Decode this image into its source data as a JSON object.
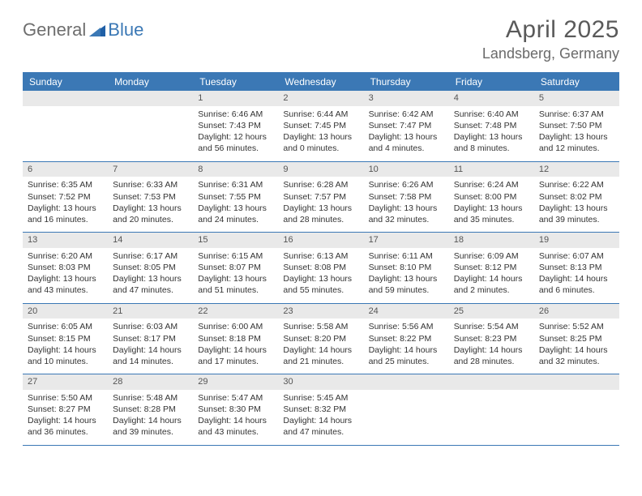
{
  "brand": {
    "part1": "General",
    "part2": "Blue"
  },
  "title": "April 2025",
  "subtitle": "Landsberg, Germany",
  "colors": {
    "accent": "#3b78b5",
    "logo_gray": "#6e6e6e",
    "title_gray": "#5a5a5a",
    "subtitle_gray": "#6a6a6a",
    "daynum_bg": "#e9e9e9",
    "daynum_text": "#555555",
    "body_text": "#333333",
    "background": "#ffffff"
  },
  "day_headers": [
    "Sunday",
    "Monday",
    "Tuesday",
    "Wednesday",
    "Thursday",
    "Friday",
    "Saturday"
  ],
  "weeks": [
    [
      {
        "day": "",
        "sunrise": "",
        "sunset": "",
        "daylight1": "",
        "daylight2": ""
      },
      {
        "day": "",
        "sunrise": "",
        "sunset": "",
        "daylight1": "",
        "daylight2": ""
      },
      {
        "day": "1",
        "sunrise": "Sunrise: 6:46 AM",
        "sunset": "Sunset: 7:43 PM",
        "daylight1": "Daylight: 12 hours",
        "daylight2": "and 56 minutes."
      },
      {
        "day": "2",
        "sunrise": "Sunrise: 6:44 AM",
        "sunset": "Sunset: 7:45 PM",
        "daylight1": "Daylight: 13 hours",
        "daylight2": "and 0 minutes."
      },
      {
        "day": "3",
        "sunrise": "Sunrise: 6:42 AM",
        "sunset": "Sunset: 7:47 PM",
        "daylight1": "Daylight: 13 hours",
        "daylight2": "and 4 minutes."
      },
      {
        "day": "4",
        "sunrise": "Sunrise: 6:40 AM",
        "sunset": "Sunset: 7:48 PM",
        "daylight1": "Daylight: 13 hours",
        "daylight2": "and 8 minutes."
      },
      {
        "day": "5",
        "sunrise": "Sunrise: 6:37 AM",
        "sunset": "Sunset: 7:50 PM",
        "daylight1": "Daylight: 13 hours",
        "daylight2": "and 12 minutes."
      }
    ],
    [
      {
        "day": "6",
        "sunrise": "Sunrise: 6:35 AM",
        "sunset": "Sunset: 7:52 PM",
        "daylight1": "Daylight: 13 hours",
        "daylight2": "and 16 minutes."
      },
      {
        "day": "7",
        "sunrise": "Sunrise: 6:33 AM",
        "sunset": "Sunset: 7:53 PM",
        "daylight1": "Daylight: 13 hours",
        "daylight2": "and 20 minutes."
      },
      {
        "day": "8",
        "sunrise": "Sunrise: 6:31 AM",
        "sunset": "Sunset: 7:55 PM",
        "daylight1": "Daylight: 13 hours",
        "daylight2": "and 24 minutes."
      },
      {
        "day": "9",
        "sunrise": "Sunrise: 6:28 AM",
        "sunset": "Sunset: 7:57 PM",
        "daylight1": "Daylight: 13 hours",
        "daylight2": "and 28 minutes."
      },
      {
        "day": "10",
        "sunrise": "Sunrise: 6:26 AM",
        "sunset": "Sunset: 7:58 PM",
        "daylight1": "Daylight: 13 hours",
        "daylight2": "and 32 minutes."
      },
      {
        "day": "11",
        "sunrise": "Sunrise: 6:24 AM",
        "sunset": "Sunset: 8:00 PM",
        "daylight1": "Daylight: 13 hours",
        "daylight2": "and 35 minutes."
      },
      {
        "day": "12",
        "sunrise": "Sunrise: 6:22 AM",
        "sunset": "Sunset: 8:02 PM",
        "daylight1": "Daylight: 13 hours",
        "daylight2": "and 39 minutes."
      }
    ],
    [
      {
        "day": "13",
        "sunrise": "Sunrise: 6:20 AM",
        "sunset": "Sunset: 8:03 PM",
        "daylight1": "Daylight: 13 hours",
        "daylight2": "and 43 minutes."
      },
      {
        "day": "14",
        "sunrise": "Sunrise: 6:17 AM",
        "sunset": "Sunset: 8:05 PM",
        "daylight1": "Daylight: 13 hours",
        "daylight2": "and 47 minutes."
      },
      {
        "day": "15",
        "sunrise": "Sunrise: 6:15 AM",
        "sunset": "Sunset: 8:07 PM",
        "daylight1": "Daylight: 13 hours",
        "daylight2": "and 51 minutes."
      },
      {
        "day": "16",
        "sunrise": "Sunrise: 6:13 AM",
        "sunset": "Sunset: 8:08 PM",
        "daylight1": "Daylight: 13 hours",
        "daylight2": "and 55 minutes."
      },
      {
        "day": "17",
        "sunrise": "Sunrise: 6:11 AM",
        "sunset": "Sunset: 8:10 PM",
        "daylight1": "Daylight: 13 hours",
        "daylight2": "and 59 minutes."
      },
      {
        "day": "18",
        "sunrise": "Sunrise: 6:09 AM",
        "sunset": "Sunset: 8:12 PM",
        "daylight1": "Daylight: 14 hours",
        "daylight2": "and 2 minutes."
      },
      {
        "day": "19",
        "sunrise": "Sunrise: 6:07 AM",
        "sunset": "Sunset: 8:13 PM",
        "daylight1": "Daylight: 14 hours",
        "daylight2": "and 6 minutes."
      }
    ],
    [
      {
        "day": "20",
        "sunrise": "Sunrise: 6:05 AM",
        "sunset": "Sunset: 8:15 PM",
        "daylight1": "Daylight: 14 hours",
        "daylight2": "and 10 minutes."
      },
      {
        "day": "21",
        "sunrise": "Sunrise: 6:03 AM",
        "sunset": "Sunset: 8:17 PM",
        "daylight1": "Daylight: 14 hours",
        "daylight2": "and 14 minutes."
      },
      {
        "day": "22",
        "sunrise": "Sunrise: 6:00 AM",
        "sunset": "Sunset: 8:18 PM",
        "daylight1": "Daylight: 14 hours",
        "daylight2": "and 17 minutes."
      },
      {
        "day": "23",
        "sunrise": "Sunrise: 5:58 AM",
        "sunset": "Sunset: 8:20 PM",
        "daylight1": "Daylight: 14 hours",
        "daylight2": "and 21 minutes."
      },
      {
        "day": "24",
        "sunrise": "Sunrise: 5:56 AM",
        "sunset": "Sunset: 8:22 PM",
        "daylight1": "Daylight: 14 hours",
        "daylight2": "and 25 minutes."
      },
      {
        "day": "25",
        "sunrise": "Sunrise: 5:54 AM",
        "sunset": "Sunset: 8:23 PM",
        "daylight1": "Daylight: 14 hours",
        "daylight2": "and 28 minutes."
      },
      {
        "day": "26",
        "sunrise": "Sunrise: 5:52 AM",
        "sunset": "Sunset: 8:25 PM",
        "daylight1": "Daylight: 14 hours",
        "daylight2": "and 32 minutes."
      }
    ],
    [
      {
        "day": "27",
        "sunrise": "Sunrise: 5:50 AM",
        "sunset": "Sunset: 8:27 PM",
        "daylight1": "Daylight: 14 hours",
        "daylight2": "and 36 minutes."
      },
      {
        "day": "28",
        "sunrise": "Sunrise: 5:48 AM",
        "sunset": "Sunset: 8:28 PM",
        "daylight1": "Daylight: 14 hours",
        "daylight2": "and 39 minutes."
      },
      {
        "day": "29",
        "sunrise": "Sunrise: 5:47 AM",
        "sunset": "Sunset: 8:30 PM",
        "daylight1": "Daylight: 14 hours",
        "daylight2": "and 43 minutes."
      },
      {
        "day": "30",
        "sunrise": "Sunrise: 5:45 AM",
        "sunset": "Sunset: 8:32 PM",
        "daylight1": "Daylight: 14 hours",
        "daylight2": "and 47 minutes."
      },
      {
        "day": "",
        "sunrise": "",
        "sunset": "",
        "daylight1": "",
        "daylight2": ""
      },
      {
        "day": "",
        "sunrise": "",
        "sunset": "",
        "daylight1": "",
        "daylight2": ""
      },
      {
        "day": "",
        "sunrise": "",
        "sunset": "",
        "daylight1": "",
        "daylight2": ""
      }
    ]
  ]
}
